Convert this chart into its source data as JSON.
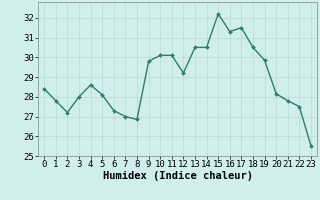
{
  "x": [
    0,
    1,
    2,
    3,
    4,
    5,
    6,
    7,
    8,
    9,
    10,
    11,
    12,
    13,
    14,
    15,
    16,
    17,
    18,
    19,
    20,
    21,
    22,
    23
  ],
  "y": [
    28.4,
    27.8,
    27.2,
    28.0,
    28.6,
    28.1,
    27.3,
    27.0,
    26.85,
    29.8,
    30.1,
    30.1,
    29.2,
    30.5,
    30.5,
    32.2,
    31.3,
    31.5,
    30.5,
    29.85,
    28.15,
    27.8,
    27.5,
    25.5
  ],
  "line_color": "#2e7d6e",
  "marker": "D",
  "marker_size": 2.0,
  "bg_color": "#d0eeee",
  "grid_color": "#b8d8d8",
  "xlabel": "Humidex (Indice chaleur)",
  "ylim": [
    25,
    32.8
  ],
  "xlim": [
    -0.5,
    23.5
  ],
  "yticks": [
    25,
    26,
    27,
    28,
    29,
    30,
    31,
    32
  ],
  "xticks": [
    0,
    1,
    2,
    3,
    4,
    5,
    6,
    7,
    8,
    9,
    10,
    11,
    12,
    13,
    14,
    15,
    16,
    17,
    18,
    19,
    20,
    21,
    22,
    23
  ],
  "tick_fontsize": 6.5,
  "xlabel_fontsize": 7.5,
  "linewidth": 1.0
}
